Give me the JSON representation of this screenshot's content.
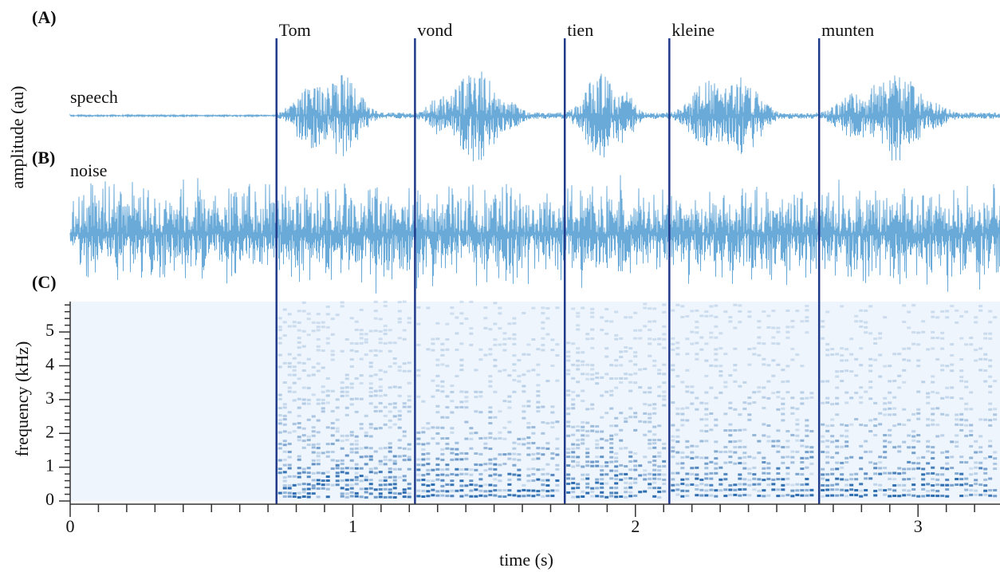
{
  "chart_data": {
    "type": "spectrogram",
    "panel_labels": [
      "(A)",
      "(B)",
      "(C)"
    ],
    "amplitude_label": "amplitude (au)",
    "traces": [
      {
        "name": "speech",
        "color": "#6aaad8"
      },
      {
        "name": "noise",
        "color": "#6aaad8"
      }
    ],
    "words": [
      {
        "label": "Tom",
        "onset": 0.73
      },
      {
        "label": "vond",
        "onset": 1.22
      },
      {
        "label": "tien",
        "onset": 1.75
      },
      {
        "label": "kleine",
        "onset": 2.12
      },
      {
        "label": "munten",
        "onset": 2.65
      }
    ],
    "word_line_color": "#1f3a8a",
    "spectrogram_color": "#1a5fa8",
    "xlabel": "time (s)",
    "xlim": [
      0,
      3.29
    ],
    "xticks": [
      0,
      1,
      2,
      3
    ],
    "xminorticks": [
      0.1,
      0.2,
      0.3,
      0.4,
      0.5,
      0.6,
      0.7,
      0.8,
      0.9,
      1.1,
      1.2,
      1.3,
      1.4,
      1.5,
      1.6,
      1.7,
      1.8,
      1.9,
      2.1,
      2.2,
      2.3,
      2.4,
      2.5,
      2.6,
      2.7,
      2.8,
      2.9,
      3.1,
      3.2
    ],
    "ylabel": "frequency (kHz)",
    "ylim": [
      0,
      5.9
    ],
    "yticks": [
      0,
      1,
      2,
      3,
      4,
      5
    ],
    "yminorticks": [
      0.2,
      0.4,
      0.6,
      0.8,
      1.2,
      1.4,
      1.6,
      1.8,
      2.2,
      2.4,
      2.6,
      2.8,
      3.2,
      3.4,
      3.6,
      3.8,
      4.2,
      4.4,
      4.6,
      4.8,
      5.2,
      5.4,
      5.6,
      5.8
    ]
  }
}
